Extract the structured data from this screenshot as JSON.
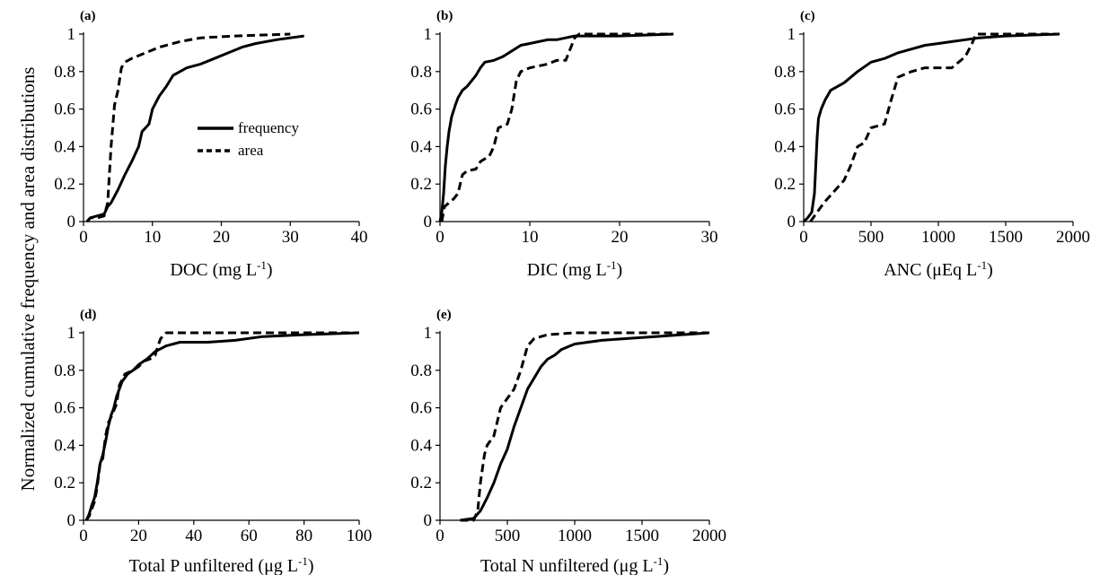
{
  "figure": {
    "ylabel": "Normalized cumulative frequency and area distributions"
  },
  "legend": {
    "entries": [
      {
        "label": "frequency",
        "style": "solid"
      },
      {
        "label": "area",
        "style": "dashed"
      }
    ]
  },
  "chart_data": [
    {
      "type": "line",
      "panel_label": "(a)",
      "xlabel": "DOC (mg L",
      "xlabel_sup": "-1",
      "xlabel_end": ")",
      "xlim": [
        0,
        40
      ],
      "xticks": [
        0,
        10,
        20,
        30,
        40
      ],
      "ylim": [
        0,
        1
      ],
      "yticks": [
        0,
        0.2,
        0.4,
        0.6,
        0.8,
        1
      ],
      "ytick_labels": [
        "0",
        "0.2",
        "0.4",
        "0.6",
        "0.8",
        "1"
      ],
      "series": [
        {
          "name": "frequency",
          "style": "solid",
          "points": [
            [
              0.5,
              0
            ],
            [
              1,
              0.02
            ],
            [
              2,
              0.03
            ],
            [
              3,
              0.04
            ],
            [
              3.5,
              0.08
            ],
            [
              4,
              0.1
            ],
            [
              5,
              0.17
            ],
            [
              6,
              0.25
            ],
            [
              7,
              0.32
            ],
            [
              8,
              0.4
            ],
            [
              8.5,
              0.48
            ],
            [
              9,
              0.5
            ],
            [
              9.5,
              0.52
            ],
            [
              10,
              0.6
            ],
            [
              11,
              0.67
            ],
            [
              12,
              0.72
            ],
            [
              13,
              0.78
            ],
            [
              14,
              0.8
            ],
            [
              15,
              0.82
            ],
            [
              17,
              0.84
            ],
            [
              19,
              0.87
            ],
            [
              21,
              0.9
            ],
            [
              23,
              0.93
            ],
            [
              25,
              0.95
            ],
            [
              28,
              0.97
            ],
            [
              30,
              0.98
            ],
            [
              32,
              0.99
            ]
          ]
        },
        {
          "name": "area",
          "style": "dashed",
          "points": [
            [
              0.5,
              0
            ],
            [
              1,
              0.02
            ],
            [
              2,
              0.02
            ],
            [
              3,
              0.03
            ],
            [
              3.5,
              0.1
            ],
            [
              4,
              0.4
            ],
            [
              4.5,
              0.62
            ],
            [
              5,
              0.7
            ],
            [
              5.5,
              0.82
            ],
            [
              6,
              0.85
            ],
            [
              7,
              0.87
            ],
            [
              9,
              0.9
            ],
            [
              11,
              0.93
            ],
            [
              14,
              0.96
            ],
            [
              17,
              0.98
            ],
            [
              22,
              0.99
            ],
            [
              30,
              1
            ]
          ]
        }
      ]
    },
    {
      "type": "line",
      "panel_label": "(b)",
      "xlabel": "DIC (mg L",
      "xlabel_sup": "-1",
      "xlabel_end": ")",
      "xlim": [
        0,
        30
      ],
      "xticks": [
        0,
        10,
        20,
        30
      ],
      "ylim": [
        0,
        1
      ],
      "yticks": [
        0,
        0.2,
        0.4,
        0.6,
        0.8,
        1
      ],
      "ytick_labels": [
        "0",
        "0.2",
        "0.4",
        "0.6",
        "0.8",
        "1"
      ],
      "series": [
        {
          "name": "frequency",
          "style": "solid",
          "points": [
            [
              0,
              0
            ],
            [
              0.2,
              0.05
            ],
            [
              0.4,
              0.15
            ],
            [
              0.6,
              0.3
            ],
            [
              0.8,
              0.4
            ],
            [
              1,
              0.48
            ],
            [
              1.3,
              0.56
            ],
            [
              1.7,
              0.62
            ],
            [
              2,
              0.66
            ],
            [
              2.5,
              0.7
            ],
            [
              3,
              0.72
            ],
            [
              3.5,
              0.75
            ],
            [
              4,
              0.78
            ],
            [
              4.5,
              0.82
            ],
            [
              5,
              0.85
            ],
            [
              6,
              0.86
            ],
            [
              7,
              0.88
            ],
            [
              8,
              0.91
            ],
            [
              9,
              0.94
            ],
            [
              10,
              0.95
            ],
            [
              11,
              0.96
            ],
            [
              12,
              0.97
            ],
            [
              13,
              0.97
            ],
            [
              14,
              0.98
            ],
            [
              15,
              0.99
            ],
            [
              20,
              0.99
            ],
            [
              26,
              1
            ]
          ]
        },
        {
          "name": "area",
          "style": "dashed",
          "points": [
            [
              0.2,
              0
            ],
            [
              0.5,
              0.08
            ],
            [
              1,
              0.1
            ],
            [
              1.5,
              0.12
            ],
            [
              2,
              0.15
            ],
            [
              2.5,
              0.25
            ],
            [
              3,
              0.27
            ],
            [
              4,
              0.28
            ],
            [
              4.5,
              0.32
            ],
            [
              5.5,
              0.35
            ],
            [
              6,
              0.4
            ],
            [
              6.5,
              0.5
            ],
            [
              7.5,
              0.52
            ],
            [
              8,
              0.6
            ],
            [
              8.5,
              0.75
            ],
            [
              9,
              0.8
            ],
            [
              10,
              0.82
            ],
            [
              12,
              0.84
            ],
            [
              13,
              0.86
            ],
            [
              14,
              0.86
            ],
            [
              14.5,
              0.92
            ],
            [
              15,
              0.98
            ],
            [
              15.5,
              1
            ],
            [
              26,
              1
            ]
          ]
        }
      ]
    },
    {
      "type": "line",
      "panel_label": "(c)",
      "xlabel": "ANC (μEq L",
      "xlabel_sup": "-1",
      "xlabel_end": ")",
      "xlim": [
        0,
        2000
      ],
      "xticks": [
        0,
        500,
        1000,
        1500,
        2000
      ],
      "ylim": [
        0,
        1
      ],
      "yticks": [
        0,
        0.2,
        0.4,
        0.6,
        0.8,
        1
      ],
      "ytick_labels": [
        "0",
        "0.2",
        "0.4",
        "0.6",
        "0.8",
        "1"
      ],
      "series": [
        {
          "name": "frequency",
          "style": "solid",
          "points": [
            [
              0,
              0
            ],
            [
              30,
              0.02
            ],
            [
              60,
              0.05
            ],
            [
              80,
              0.15
            ],
            [
              90,
              0.3
            ],
            [
              100,
              0.45
            ],
            [
              110,
              0.55
            ],
            [
              130,
              0.6
            ],
            [
              160,
              0.65
            ],
            [
              200,
              0.7
            ],
            [
              300,
              0.74
            ],
            [
              400,
              0.8
            ],
            [
              500,
              0.85
            ],
            [
              600,
              0.87
            ],
            [
              700,
              0.9
            ],
            [
              800,
              0.92
            ],
            [
              900,
              0.94
            ],
            [
              1000,
              0.95
            ],
            [
              1100,
              0.96
            ],
            [
              1200,
              0.97
            ],
            [
              1300,
              0.98
            ],
            [
              1500,
              0.99
            ],
            [
              1900,
              1
            ]
          ]
        },
        {
          "name": "area",
          "style": "dashed",
          "points": [
            [
              50,
              0
            ],
            [
              100,
              0.05
            ],
            [
              150,
              0.1
            ],
            [
              200,
              0.14
            ],
            [
              300,
              0.22
            ],
            [
              350,
              0.3
            ],
            [
              400,
              0.4
            ],
            [
              450,
              0.42
            ],
            [
              500,
              0.5
            ],
            [
              600,
              0.52
            ],
            [
              650,
              0.65
            ],
            [
              700,
              0.77
            ],
            [
              800,
              0.8
            ],
            [
              900,
              0.82
            ],
            [
              1000,
              0.82
            ],
            [
              1100,
              0.82
            ],
            [
              1200,
              0.88
            ],
            [
              1250,
              0.95
            ],
            [
              1280,
              1
            ],
            [
              1900,
              1
            ]
          ]
        }
      ]
    },
    {
      "type": "line",
      "panel_label": "(d)",
      "xlabel": "Total P unfiltered (μg L",
      "xlabel_sup": "-1",
      "xlabel_end": ")",
      "xlim": [
        0,
        100
      ],
      "xticks": [
        0,
        20,
        40,
        60,
        80,
        100
      ],
      "ylim": [
        0,
        1
      ],
      "yticks": [
        0,
        0.2,
        0.4,
        0.6,
        0.8,
        1
      ],
      "ytick_labels": [
        "0",
        "0.2",
        "0.4",
        "0.6",
        "0.8",
        "1"
      ],
      "series": [
        {
          "name": "frequency",
          "style": "solid",
          "points": [
            [
              1,
              0
            ],
            [
              2,
              0.03
            ],
            [
              3,
              0.08
            ],
            [
              4,
              0.12
            ],
            [
              5,
              0.2
            ],
            [
              6,
              0.3
            ],
            [
              7,
              0.35
            ],
            [
              8,
              0.42
            ],
            [
              9,
              0.5
            ],
            [
              10,
              0.56
            ],
            [
              11,
              0.6
            ],
            [
              12,
              0.66
            ],
            [
              13,
              0.7
            ],
            [
              14,
              0.74
            ],
            [
              16,
              0.78
            ],
            [
              18,
              0.8
            ],
            [
              20,
              0.83
            ],
            [
              23,
              0.86
            ],
            [
              26,
              0.9
            ],
            [
              30,
              0.93
            ],
            [
              35,
              0.95
            ],
            [
              45,
              0.95
            ],
            [
              55,
              0.96
            ],
            [
              65,
              0.98
            ],
            [
              80,
              0.99
            ],
            [
              100,
              1
            ]
          ]
        },
        {
          "name": "area",
          "style": "dashed",
          "points": [
            [
              1,
              0
            ],
            [
              2,
              0.02
            ],
            [
              4,
              0.1
            ],
            [
              5,
              0.18
            ],
            [
              6,
              0.3
            ],
            [
              7,
              0.33
            ],
            [
              8,
              0.45
            ],
            [
              9,
              0.52
            ],
            [
              10,
              0.55
            ],
            [
              12,
              0.62
            ],
            [
              13,
              0.72
            ],
            [
              15,
              0.78
            ],
            [
              18,
              0.8
            ],
            [
              20,
              0.82
            ],
            [
              22,
              0.85
            ],
            [
              24,
              0.86
            ],
            [
              26,
              0.88
            ],
            [
              27,
              0.93
            ],
            [
              28,
              0.97
            ],
            [
              30,
              1
            ],
            [
              100,
              1
            ]
          ]
        }
      ]
    },
    {
      "type": "line",
      "panel_label": "(e)",
      "xlabel": "Total N unfiltered (μg L",
      "xlabel_sup": "-1",
      "xlabel_end": ")",
      "xlim": [
        0,
        2000
      ],
      "xticks": [
        0,
        500,
        1000,
        1500,
        2000
      ],
      "ylim": [
        0,
        1
      ],
      "yticks": [
        0,
        0.2,
        0.4,
        0.6,
        0.8,
        1
      ],
      "ytick_labels": [
        "0",
        "0.2",
        "0.4",
        "0.6",
        "0.8",
        "1"
      ],
      "series": [
        {
          "name": "frequency",
          "style": "solid",
          "points": [
            [
              150,
              0
            ],
            [
              250,
              0.01
            ],
            [
              300,
              0.05
            ],
            [
              350,
              0.12
            ],
            [
              400,
              0.2
            ],
            [
              450,
              0.3
            ],
            [
              500,
              0.38
            ],
            [
              550,
              0.5
            ],
            [
              600,
              0.6
            ],
            [
              650,
              0.7
            ],
            [
              700,
              0.76
            ],
            [
              750,
              0.82
            ],
            [
              800,
              0.86
            ],
            [
              850,
              0.88
            ],
            [
              900,
              0.91
            ],
            [
              1000,
              0.94
            ],
            [
              1200,
              0.96
            ],
            [
              1400,
              0.97
            ],
            [
              1600,
              0.98
            ],
            [
              2000,
              1
            ]
          ]
        },
        {
          "name": "area",
          "style": "dashed",
          "points": [
            [
              150,
              0
            ],
            [
              250,
              0
            ],
            [
              280,
              0.05
            ],
            [
              300,
              0.2
            ],
            [
              330,
              0.35
            ],
            [
              350,
              0.4
            ],
            [
              400,
              0.45
            ],
            [
              450,
              0.6
            ],
            [
              500,
              0.65
            ],
            [
              550,
              0.7
            ],
            [
              600,
              0.8
            ],
            [
              650,
              0.93
            ],
            [
              700,
              0.97
            ],
            [
              800,
              0.99
            ],
            [
              1000,
              1
            ],
            [
              2000,
              1
            ]
          ]
        }
      ]
    }
  ]
}
